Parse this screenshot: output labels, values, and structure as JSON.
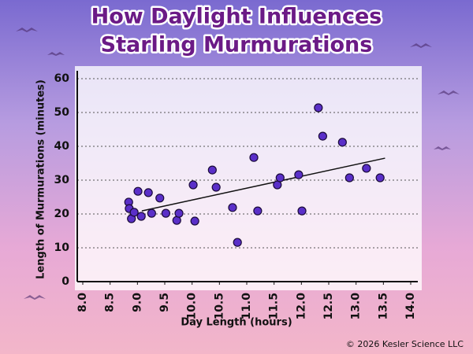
{
  "chart_data": {
    "type": "scatter",
    "title": [
      "How Daylight Influences",
      "Starling Murmurations"
    ],
    "x_label": "Day Length (hours)",
    "y_label": "Length of Murmurations (minutes)",
    "footer": "© 2026 Kesler Science LLC",
    "color": "#5a2fc8",
    "x": [
      8.84,
      8.85,
      8.89,
      8.94,
      9.01,
      9.07,
      9.2,
      9.26,
      9.41,
      9.52,
      9.72,
      9.76,
      10.02,
      10.05,
      10.37,
      10.44,
      10.74,
      10.83,
      11.13,
      11.2,
      11.56,
      11.61,
      11.95,
      12.01,
      12.31,
      12.39,
      12.75,
      12.88,
      13.19,
      13.44
    ],
    "values": [
      23.5,
      21.6,
      18.6,
      20.5,
      26.7,
      19.3,
      26.3,
      20.2,
      24.7,
      20.2,
      18.1,
      20.2,
      28.6,
      17.9,
      33,
      27.9,
      21.9,
      11.6,
      36.7,
      20.9,
      28.6,
      30.7,
      31.6,
      20.9,
      51.4,
      43,
      41.2,
      30.7,
      33.5,
      30.7
    ],
    "trend_line": {
      "x": [
        9.08,
        13.53
      ],
      "y": [
        20.9,
        36.5
      ]
    },
    "xlim": [
      8,
      14
    ],
    "ylim": [
      0,
      60
    ],
    "xticks": [
      {
        "value": 8,
        "label": "8.0"
      },
      8.5,
      {
        "value": 9,
        "label": "9.0"
      },
      9.5,
      {
        "value": 10,
        "label": "10.0"
      },
      10.5,
      {
        "value": 11,
        "label": "11.0"
      },
      11.5,
      {
        "value": 12,
        "label": "12.0"
      },
      12.5,
      {
        "value": 13,
        "label": "13.0"
      },
      13.5,
      {
        "value": 14,
        "label": "14.0"
      }
    ],
    "yticks": [
      0,
      10,
      20,
      30,
      40,
      50,
      60
    ],
    "grid": true
  }
}
